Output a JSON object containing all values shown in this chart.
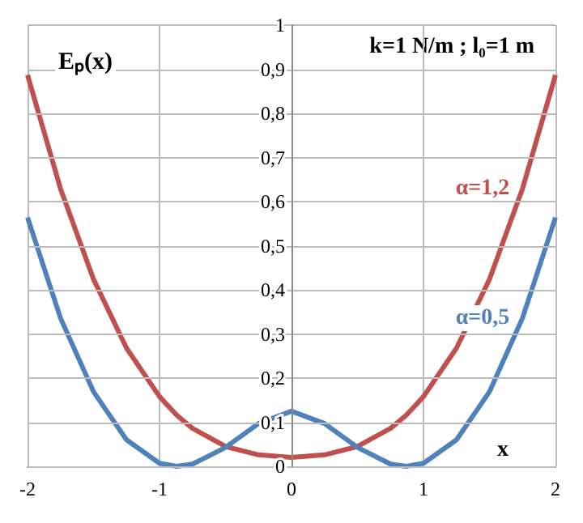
{
  "chart_data": {
    "type": "line",
    "xlabel": "x",
    "ylabel": "Eₚ(x)",
    "annotations": [
      "k=1 N/m ; l₀=1 m"
    ],
    "x": [
      -2,
      -1.75,
      -1.5,
      -1.25,
      -1,
      -0.87,
      -0.75,
      -0.5,
      -0.25,
      0,
      0.25,
      0.5,
      0.75,
      0.87,
      1,
      1.25,
      1.5,
      1.75,
      2
    ],
    "series": [
      {
        "name": "α=1,2",
        "color": "#c0504d",
        "values": [
          0.887,
          0.629,
          0.424,
          0.268,
          0.158,
          0.116,
          0.086,
          0.045,
          0.026,
          0.02,
          0.026,
          0.045,
          0.086,
          0.116,
          0.158,
          0.268,
          0.424,
          0.629,
          0.887
        ]
      },
      {
        "name": "α=0,5",
        "color": "#4f81bd",
        "values": [
          0.564,
          0.336,
          0.169,
          0.06,
          0.007,
          0,
          0.005,
          0.043,
          0.097,
          0.125,
          0.097,
          0.043,
          0.005,
          0,
          0.007,
          0.06,
          0.169,
          0.336,
          0.564
        ]
      }
    ],
    "xlim": [
      -2,
      2
    ],
    "xticks": [
      -2,
      -1,
      0,
      1,
      2
    ],
    "ylim": [
      0,
      1
    ],
    "yticks": [
      0,
      {
        "value": 0.1,
        "label": "0,1"
      },
      {
        "value": 0.2,
        "label": "0,2"
      },
      {
        "value": 0.3,
        "label": "0,3"
      },
      {
        "value": 0.4,
        "label": "0,4"
      },
      {
        "value": 0.5,
        "label": "0,5"
      },
      {
        "value": 0.6,
        "label": "0,6"
      },
      {
        "value": 0.7,
        "label": "0,7"
      },
      {
        "value": 0.8,
        "label": "0,8"
      },
      {
        "value": 0.9,
        "label": "0,9"
      },
      1
    ],
    "grid": true,
    "marker": "none",
    "line_style": "solid"
  }
}
